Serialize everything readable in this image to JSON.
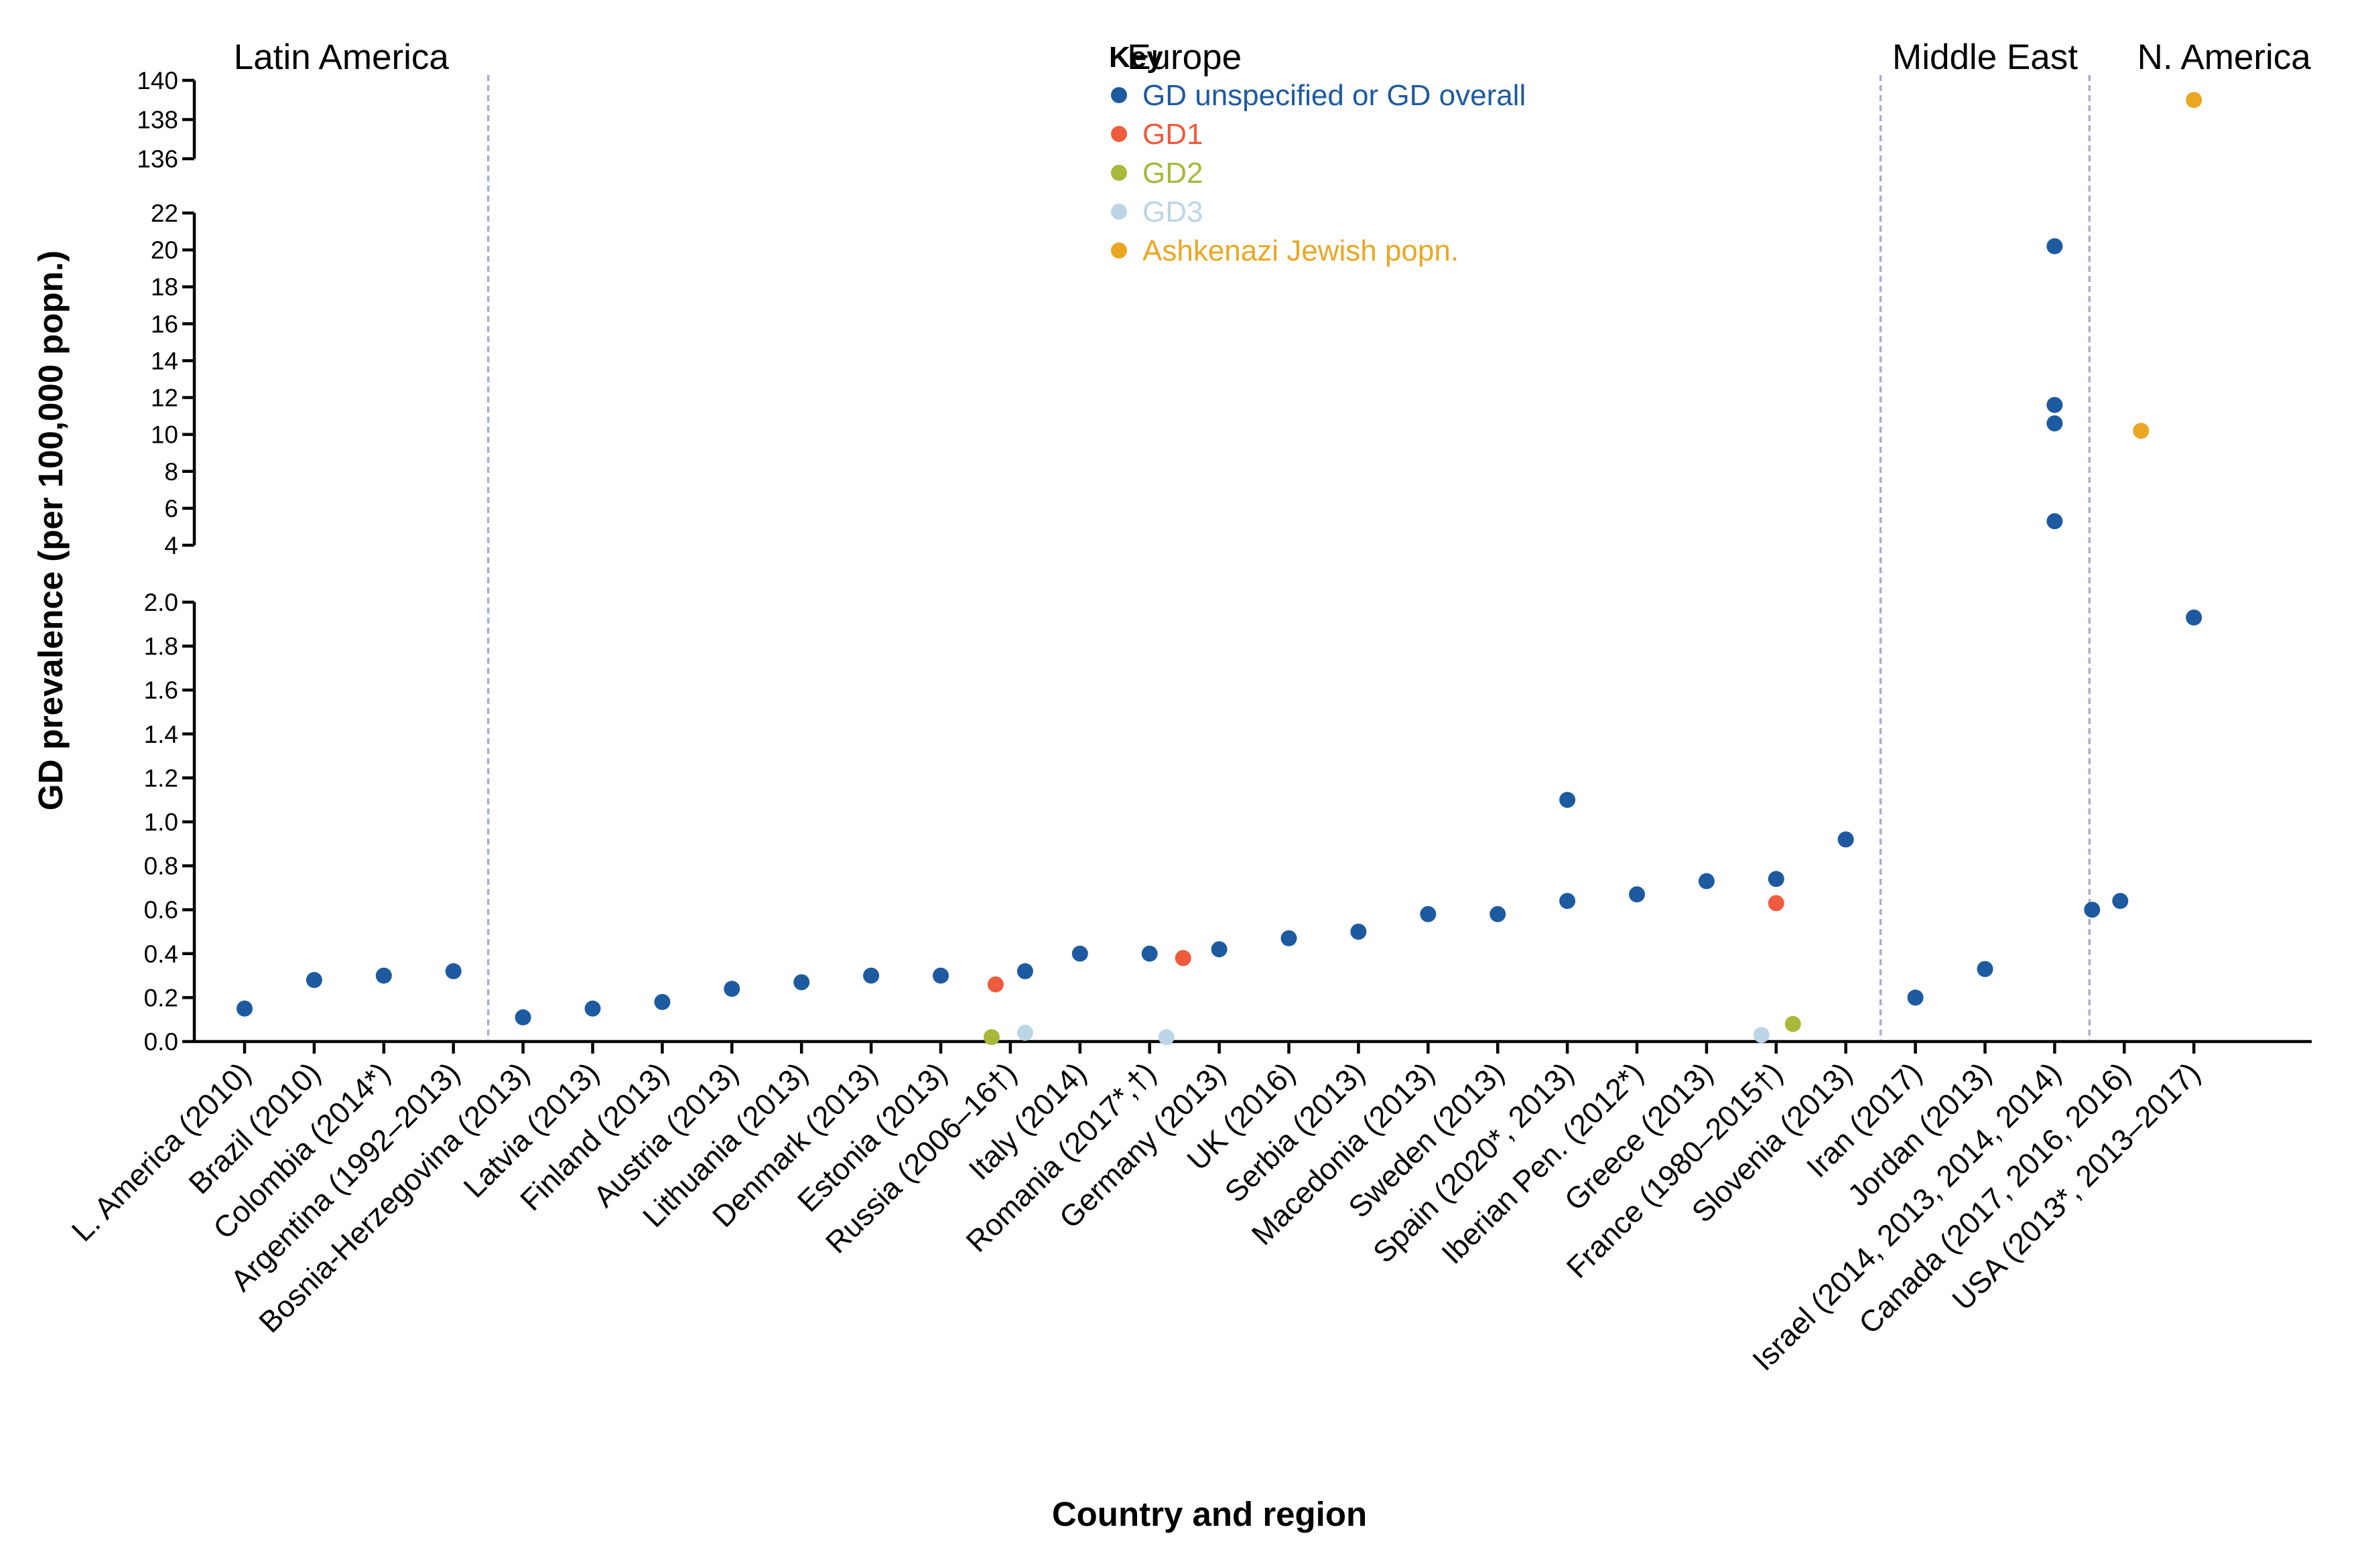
{
  "chart_data": {
    "type": "scatter",
    "title": "",
    "xlabel": "Country and region",
    "ylabel": "GD prevalence (per 100,000 popn.)",
    "y_axis_breaks": [
      {
        "ylim": [
          0,
          2.0
        ],
        "ticks": [
          "0.0",
          "0.2",
          "0.4",
          "0.6",
          "0.8",
          "1.0",
          "1.2",
          "1.4",
          "1.6",
          "1.8",
          "2.0"
        ]
      },
      {
        "ylim": [
          4,
          22
        ],
        "ticks": [
          "4",
          "6",
          "8",
          "10",
          "12",
          "14",
          "16",
          "18",
          "20",
          "22"
        ]
      },
      {
        "ylim": [
          136,
          140
        ],
        "ticks": [
          "136",
          "138",
          "140"
        ]
      }
    ],
    "grid": false,
    "legend_position": "top-center",
    "legend": {
      "title": "Key",
      "entries": [
        {
          "key": "overall",
          "label": "GD unspecified or GD overall",
          "color": "#1d5aa0"
        },
        {
          "key": "gd1",
          "label": "GD1",
          "color": "#ef5b3d"
        },
        {
          "key": "gd2",
          "label": "GD2",
          "color": "#a8b83a"
        },
        {
          "key": "gd3",
          "label": "GD3",
          "color": "#bcd5e6"
        },
        {
          "key": "aj",
          "label": "Ashkenazi Jewish popn.",
          "color": "#eba622"
        }
      ]
    },
    "regions": [
      {
        "label": "Latin America",
        "first": 0,
        "last": 3
      },
      {
        "label": "Europe",
        "first": 4,
        "last": 23
      },
      {
        "label": "Middle East",
        "first": 24,
        "last": 26
      },
      {
        "label": "N. America",
        "first": 27,
        "last": 28
      }
    ],
    "categories": [
      "L. America (2010)",
      "Brazil (2010)",
      "Colombia (2014*)",
      "Argentina (1992–2013)",
      "Bosnia-Herzegovina (2013)",
      "Latvia (2013)",
      "Finland (2013)",
      "Austria (2013)",
      "Lithuania (2013)",
      "Denmark (2013)",
      "Estonia (2013)",
      "Russia (2006–16†)",
      "Italy (2014)",
      "Romania (2017*,†)",
      "Germany (2013)",
      "UK (2016)",
      "Serbia (2013)",
      "Macedonia (2013)",
      "Sweden (2013)",
      "Spain (2020*, 2013)",
      "Iberian Pen. (2012*)",
      "Greece (2013)",
      "France (1980–2015†)",
      "Slovenia (2013)",
      "Iran (2017)",
      "Jordan (2013)",
      "Israel (2014, 2013, 2014, 2014)",
      "Canada (2017, 2016, 2016)",
      "USA (2013*, 2013–2017)"
    ],
    "points": [
      {
        "category": 0,
        "series": "overall",
        "y": 0.15
      },
      {
        "category": 1,
        "series": "overall",
        "y": 0.28
      },
      {
        "category": 2,
        "series": "overall",
        "y": 0.3
      },
      {
        "category": 3,
        "series": "overall",
        "y": 0.32
      },
      {
        "category": 4,
        "series": "overall",
        "y": 0.11
      },
      {
        "category": 5,
        "series": "overall",
        "y": 0.15
      },
      {
        "category": 6,
        "series": "overall",
        "y": 0.18
      },
      {
        "category": 7,
        "series": "overall",
        "y": 0.24
      },
      {
        "category": 8,
        "series": "overall",
        "y": 0.27
      },
      {
        "category": 9,
        "series": "overall",
        "y": 0.3
      },
      {
        "category": 10,
        "series": "overall",
        "y": 0.3
      },
      {
        "category": 11,
        "series": "gd1",
        "y": 0.26
      },
      {
        "category": 11,
        "series": "gd2",
        "y": 0.02
      },
      {
        "category": 11,
        "series": "gd3",
        "y": 0.04
      },
      {
        "category": 11,
        "series": "overall",
        "y": 0.32
      },
      {
        "category": 12,
        "series": "overall",
        "y": 0.4
      },
      {
        "category": 13,
        "series": "overall",
        "y": 0.4
      },
      {
        "category": 13,
        "series": "gd3",
        "y": 0.02
      },
      {
        "category": 13,
        "series": "gd1",
        "y": 0.38
      },
      {
        "category": 14,
        "series": "overall",
        "y": 0.42
      },
      {
        "category": 15,
        "series": "overall",
        "y": 0.47
      },
      {
        "category": 16,
        "series": "overall",
        "y": 0.5
      },
      {
        "category": 17,
        "series": "overall",
        "y": 0.58
      },
      {
        "category": 18,
        "series": "overall",
        "y": 0.58
      },
      {
        "category": 19,
        "series": "overall",
        "y": 1.1
      },
      {
        "category": 19,
        "series": "overall",
        "y": 0.64
      },
      {
        "category": 20,
        "series": "overall",
        "y": 0.67
      },
      {
        "category": 21,
        "series": "overall",
        "y": 0.73
      },
      {
        "category": 22,
        "series": "overall",
        "y": 0.74
      },
      {
        "category": 22,
        "series": "gd1",
        "y": 0.63
      },
      {
        "category": 22,
        "series": "gd3",
        "y": 0.03
      },
      {
        "category": 22,
        "series": "gd2",
        "y": 0.08
      },
      {
        "category": 23,
        "series": "overall",
        "y": 0.92
      },
      {
        "category": 24,
        "series": "overall",
        "y": 0.2
      },
      {
        "category": 25,
        "series": "overall",
        "y": 0.33
      },
      {
        "category": 26,
        "series": "overall",
        "y": 20.2
      },
      {
        "category": 26,
        "series": "overall",
        "y": 11.6
      },
      {
        "category": 26,
        "series": "overall",
        "y": 10.6
      },
      {
        "category": 26,
        "series": "overall",
        "y": 5.3
      },
      {
        "category": 27,
        "series": "overall",
        "y": 0.6
      },
      {
        "category": 27,
        "series": "overall",
        "y": 0.64
      },
      {
        "category": 27,
        "series": "aj",
        "y": 10.2
      },
      {
        "category": 28,
        "series": "overall",
        "y": 1.93
      },
      {
        "category": 28,
        "series": "aj",
        "y": 139.0
      }
    ]
  }
}
